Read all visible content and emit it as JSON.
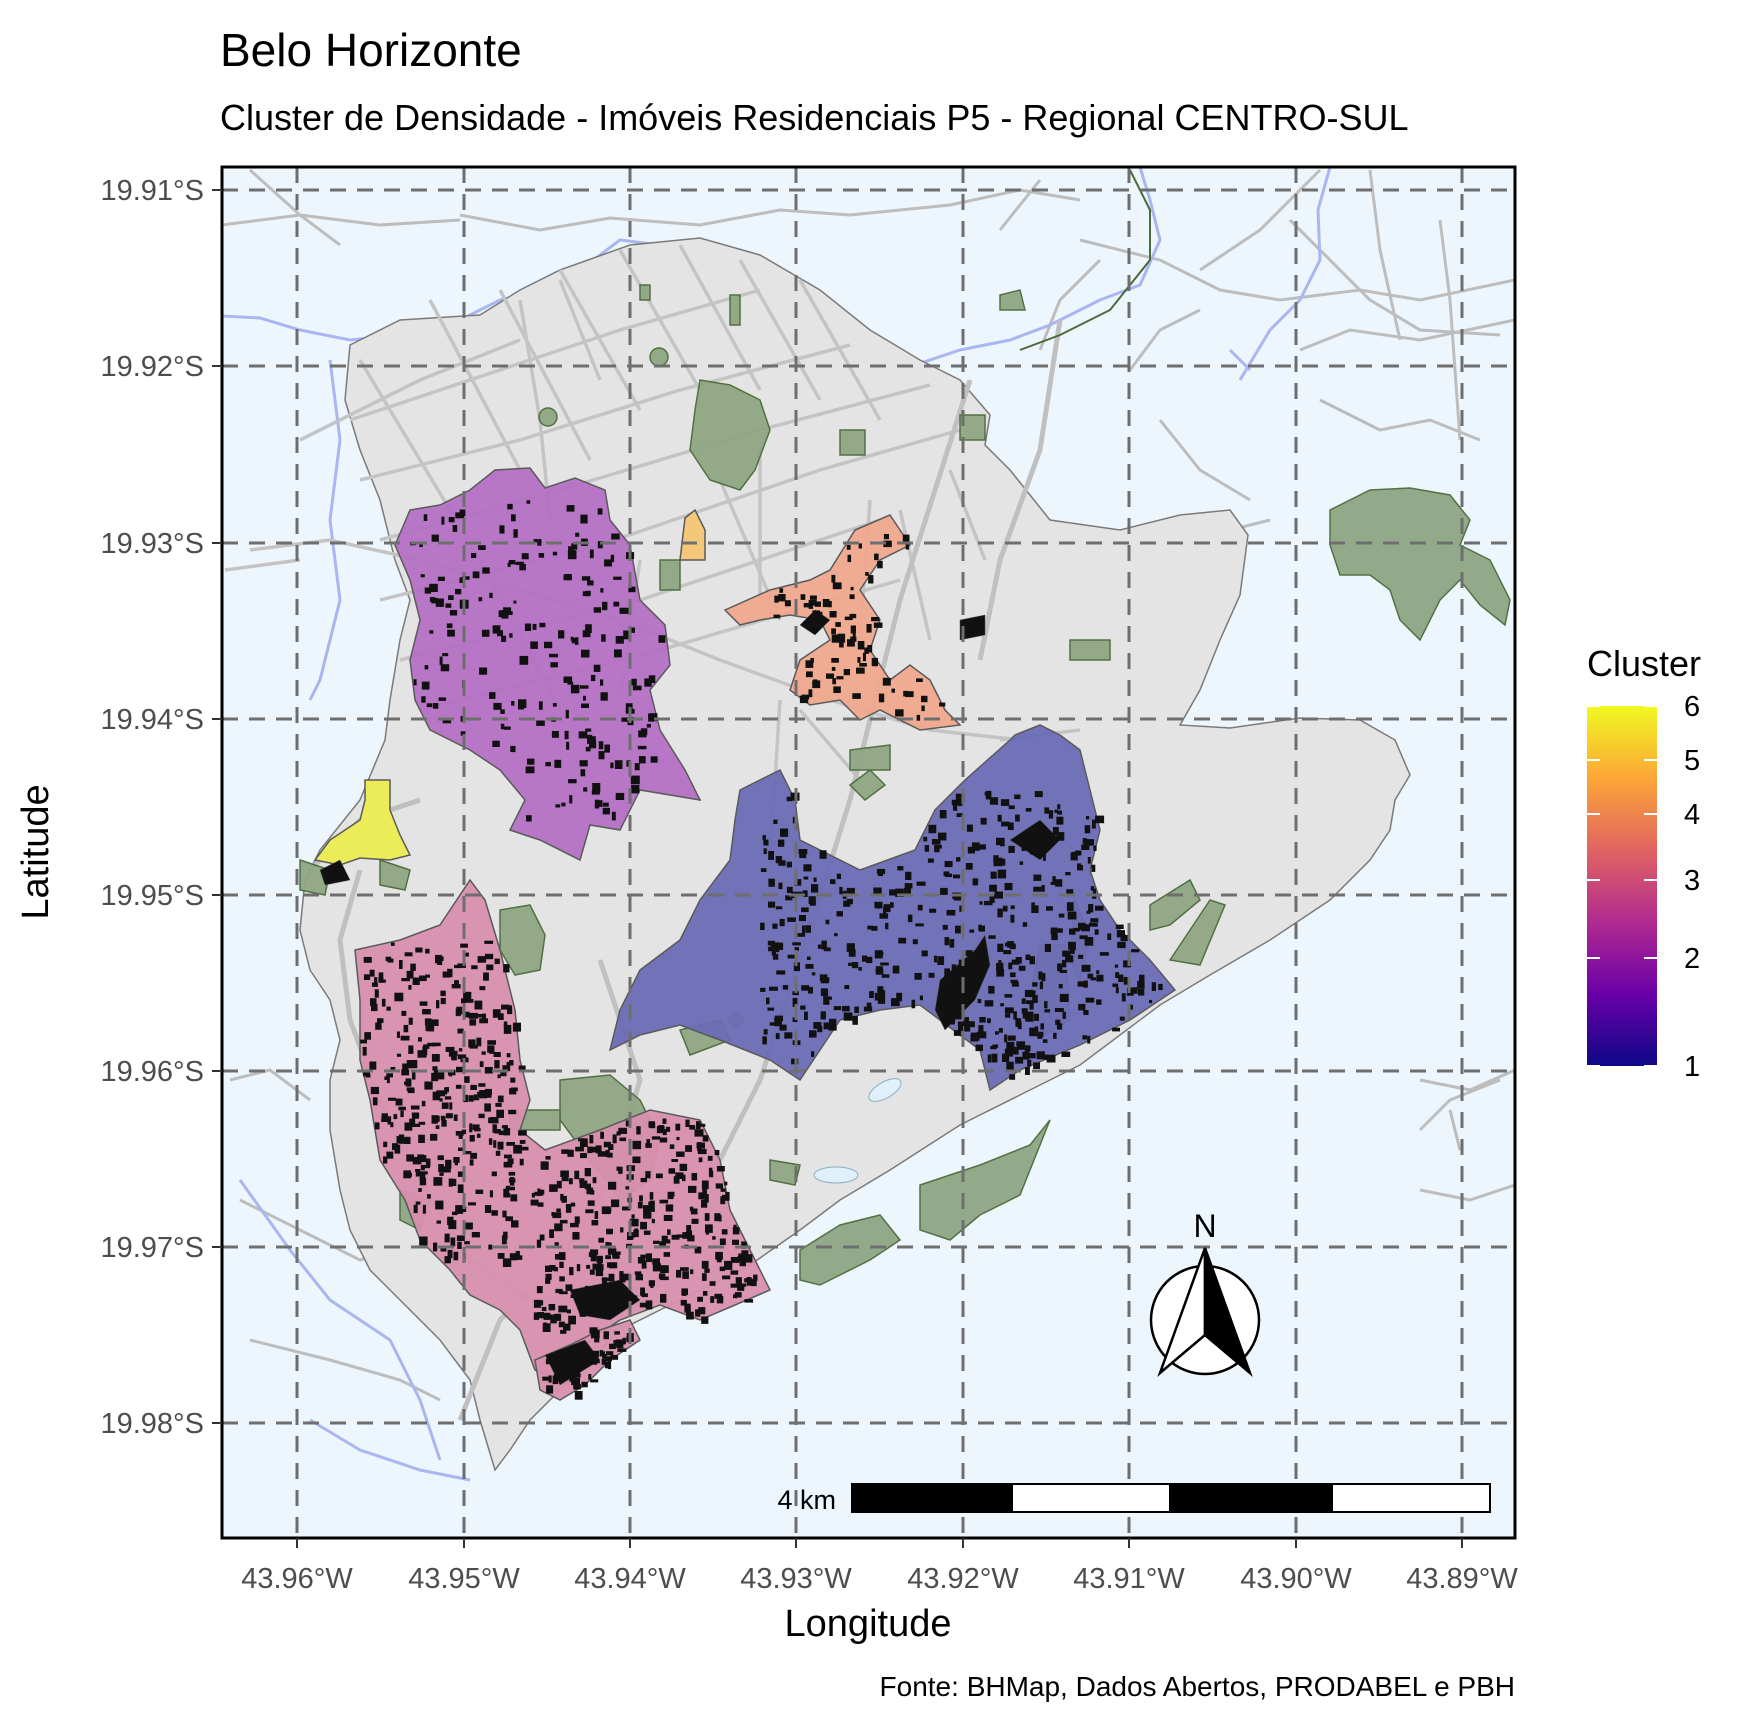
{
  "title": "Belo Horizonte",
  "subtitle": "Cluster de Densidade - Imóveis Residenciais P5 - Regional CENTRO-SUL",
  "axes": {
    "x_label": "Longitude",
    "y_label": "Latitude",
    "x_ticks": [
      "43.96°W",
      "43.95°W",
      "43.94°W",
      "43.93°W",
      "43.92°W",
      "43.91°W",
      "43.90°W",
      "43.89°W"
    ],
    "y_ticks": [
      "19.91°S",
      "19.92°S",
      "19.93°S",
      "19.94°S",
      "19.95°S",
      "19.96°S",
      "19.97°S",
      "19.98°S"
    ]
  },
  "legend": {
    "title": "Cluster",
    "ticks": [
      "6",
      "5",
      "4",
      "3",
      "2",
      "1"
    ],
    "scale_colors": [
      "#0d0887",
      "#6a00a8",
      "#b12a90",
      "#e16462",
      "#fca636",
      "#f0f921"
    ]
  },
  "scale_bar": {
    "label": "4 km"
  },
  "north_arrow": {
    "label": "N"
  },
  "caption": "Fonte: BHMap, Dados Abertos, PRODABEL e PBH",
  "colors": {
    "background": "#eef6fd",
    "region": "#e4e4e4",
    "roads": "#bdbdbd",
    "green_areas": "#8fa684",
    "rivers": "#a9b6f0",
    "cluster_1": "#6b6bb5",
    "cluster_2": "#b571c4",
    "cluster_3": "#d88fae",
    "cluster_4": "#f0a88e",
    "cluster_5": "#f4c77a",
    "cluster_6": "#ecec58"
  }
}
